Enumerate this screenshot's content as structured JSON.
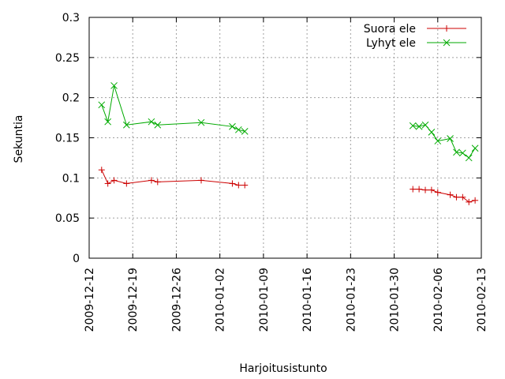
{
  "chart_data": {
    "type": "line",
    "title": "",
    "xlabel": "Harjoitusistunto",
    "ylabel": "Sekuntia",
    "x_axis_type": "date",
    "xlim": [
      "2009-12-12",
      "2010-02-13"
    ],
    "ylim": [
      0,
      0.3
    ],
    "x_ticks": [
      "2009-12-12",
      "2009-12-19",
      "2009-12-26",
      "2010-01-02",
      "2010-01-09",
      "2010-01-16",
      "2010-01-23",
      "2010-01-30",
      "2010-02-06",
      "2010-02-13"
    ],
    "y_ticks": [
      "0",
      "0.05",
      "0.1",
      "0.15",
      "0.2",
      "0.25",
      "0.3"
    ],
    "grid": true,
    "legend_position": "top-right",
    "series": [
      {
        "name": "Suora ele",
        "color": "#cc0000",
        "marker": "plus",
        "segments": [
          [
            {
              "x": "2009-12-14",
              "y": 0.11
            },
            {
              "x": "2009-12-15",
              "y": 0.093
            },
            {
              "x": "2009-12-16",
              "y": 0.097
            },
            {
              "x": "2009-12-18",
              "y": 0.093
            },
            {
              "x": "2009-12-22",
              "y": 0.097
            },
            {
              "x": "2009-12-23",
              "y": 0.095
            },
            {
              "x": "2009-12-30",
              "y": 0.097
            },
            {
              "x": "2010-01-04",
              "y": 0.093
            },
            {
              "x": "2010-01-05",
              "y": 0.091
            },
            {
              "x": "2010-01-06",
              "y": 0.091
            }
          ],
          [
            {
              "x": "2010-02-02",
              "y": 0.086
            },
            {
              "x": "2010-02-03",
              "y": 0.086
            },
            {
              "x": "2010-02-04",
              "y": 0.085
            },
            {
              "x": "2010-02-05",
              "y": 0.085
            },
            {
              "x": "2010-02-06",
              "y": 0.082
            },
            {
              "x": "2010-02-08",
              "y": 0.079
            },
            {
              "x": "2010-02-09",
              "y": 0.076
            },
            {
              "x": "2010-02-10",
              "y": 0.076
            },
            {
              "x": "2010-02-11",
              "y": 0.07
            },
            {
              "x": "2010-02-12",
              "y": 0.072
            }
          ]
        ]
      },
      {
        "name": "Lyhyt ele",
        "color": "#00aa00",
        "marker": "x",
        "segments": [
          [
            {
              "x": "2009-12-14",
              "y": 0.191
            },
            {
              "x": "2009-12-15",
              "y": 0.17
            },
            {
              "x": "2009-12-16",
              "y": 0.215
            },
            {
              "x": "2009-12-18",
              "y": 0.166
            },
            {
              "x": "2009-12-22",
              "y": 0.17
            },
            {
              "x": "2009-12-23",
              "y": 0.166
            },
            {
              "x": "2009-12-30",
              "y": 0.169
            },
            {
              "x": "2010-01-04",
              "y": 0.164
            },
            {
              "x": "2010-01-05",
              "y": 0.16
            },
            {
              "x": "2010-01-06",
              "y": 0.158
            }
          ],
          [
            {
              "x": "2010-02-02",
              "y": 0.165
            },
            {
              "x": "2010-02-03",
              "y": 0.164
            },
            {
              "x": "2010-02-04",
              "y": 0.166
            },
            {
              "x": "2010-02-05",
              "y": 0.157
            },
            {
              "x": "2010-02-06",
              "y": 0.146
            },
            {
              "x": "2010-02-08",
              "y": 0.149
            },
            {
              "x": "2010-02-09",
              "y": 0.132
            },
            {
              "x": "2010-02-10",
              "y": 0.131
            },
            {
              "x": "2010-02-11",
              "y": 0.125
            },
            {
              "x": "2010-02-12",
              "y": 0.137
            }
          ]
        ]
      }
    ]
  }
}
